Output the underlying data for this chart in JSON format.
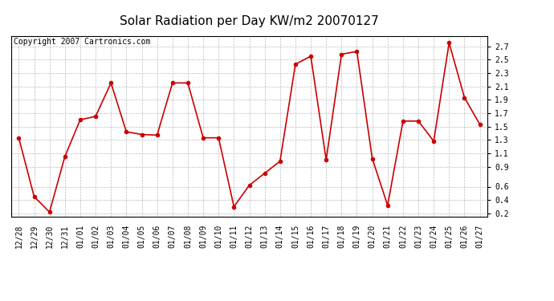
{
  "title": "Solar Radiation per Day KW/m2 20070127",
  "copyright_text": "Copyright 2007 Cartronics.com",
  "labels": [
    "12/28",
    "12/29",
    "12/30",
    "12/31",
    "01/01",
    "01/02",
    "01/03",
    "01/04",
    "01/05",
    "01/06",
    "01/07",
    "01/08",
    "01/09",
    "01/10",
    "01/11",
    "01/12",
    "01/13",
    "01/14",
    "01/15",
    "01/16",
    "01/17",
    "01/18",
    "01/19",
    "01/20",
    "01/21",
    "01/22",
    "01/23",
    "01/24",
    "01/25",
    "01/26",
    "01/27"
  ],
  "values": [
    1.33,
    0.45,
    0.22,
    1.05,
    1.6,
    1.65,
    2.15,
    1.42,
    1.38,
    1.37,
    2.15,
    2.15,
    1.33,
    1.33,
    0.3,
    0.62,
    0.8,
    0.98,
    2.43,
    2.55,
    1.0,
    2.58,
    2.62,
    1.02,
    0.32,
    1.58,
    1.58,
    1.28,
    2.75,
    1.93,
    1.53
  ],
  "line_color": "#cc0000",
  "marker": "o",
  "marker_size": 3,
  "ylim": [
    0.15,
    2.85
  ],
  "yticks": [
    0.2,
    0.4,
    0.6,
    0.9,
    1.1,
    1.3,
    1.5,
    1.7,
    1.9,
    2.1,
    2.3,
    2.5,
    2.7
  ],
  "background_color": "#ffffff",
  "plot_bg_color": "#ffffff",
  "grid_color": "#bbbbbb",
  "title_fontsize": 11,
  "tick_fontsize": 7,
  "copyright_fontsize": 7,
  "fig_width": 6.9,
  "fig_height": 3.75,
  "dpi": 100
}
